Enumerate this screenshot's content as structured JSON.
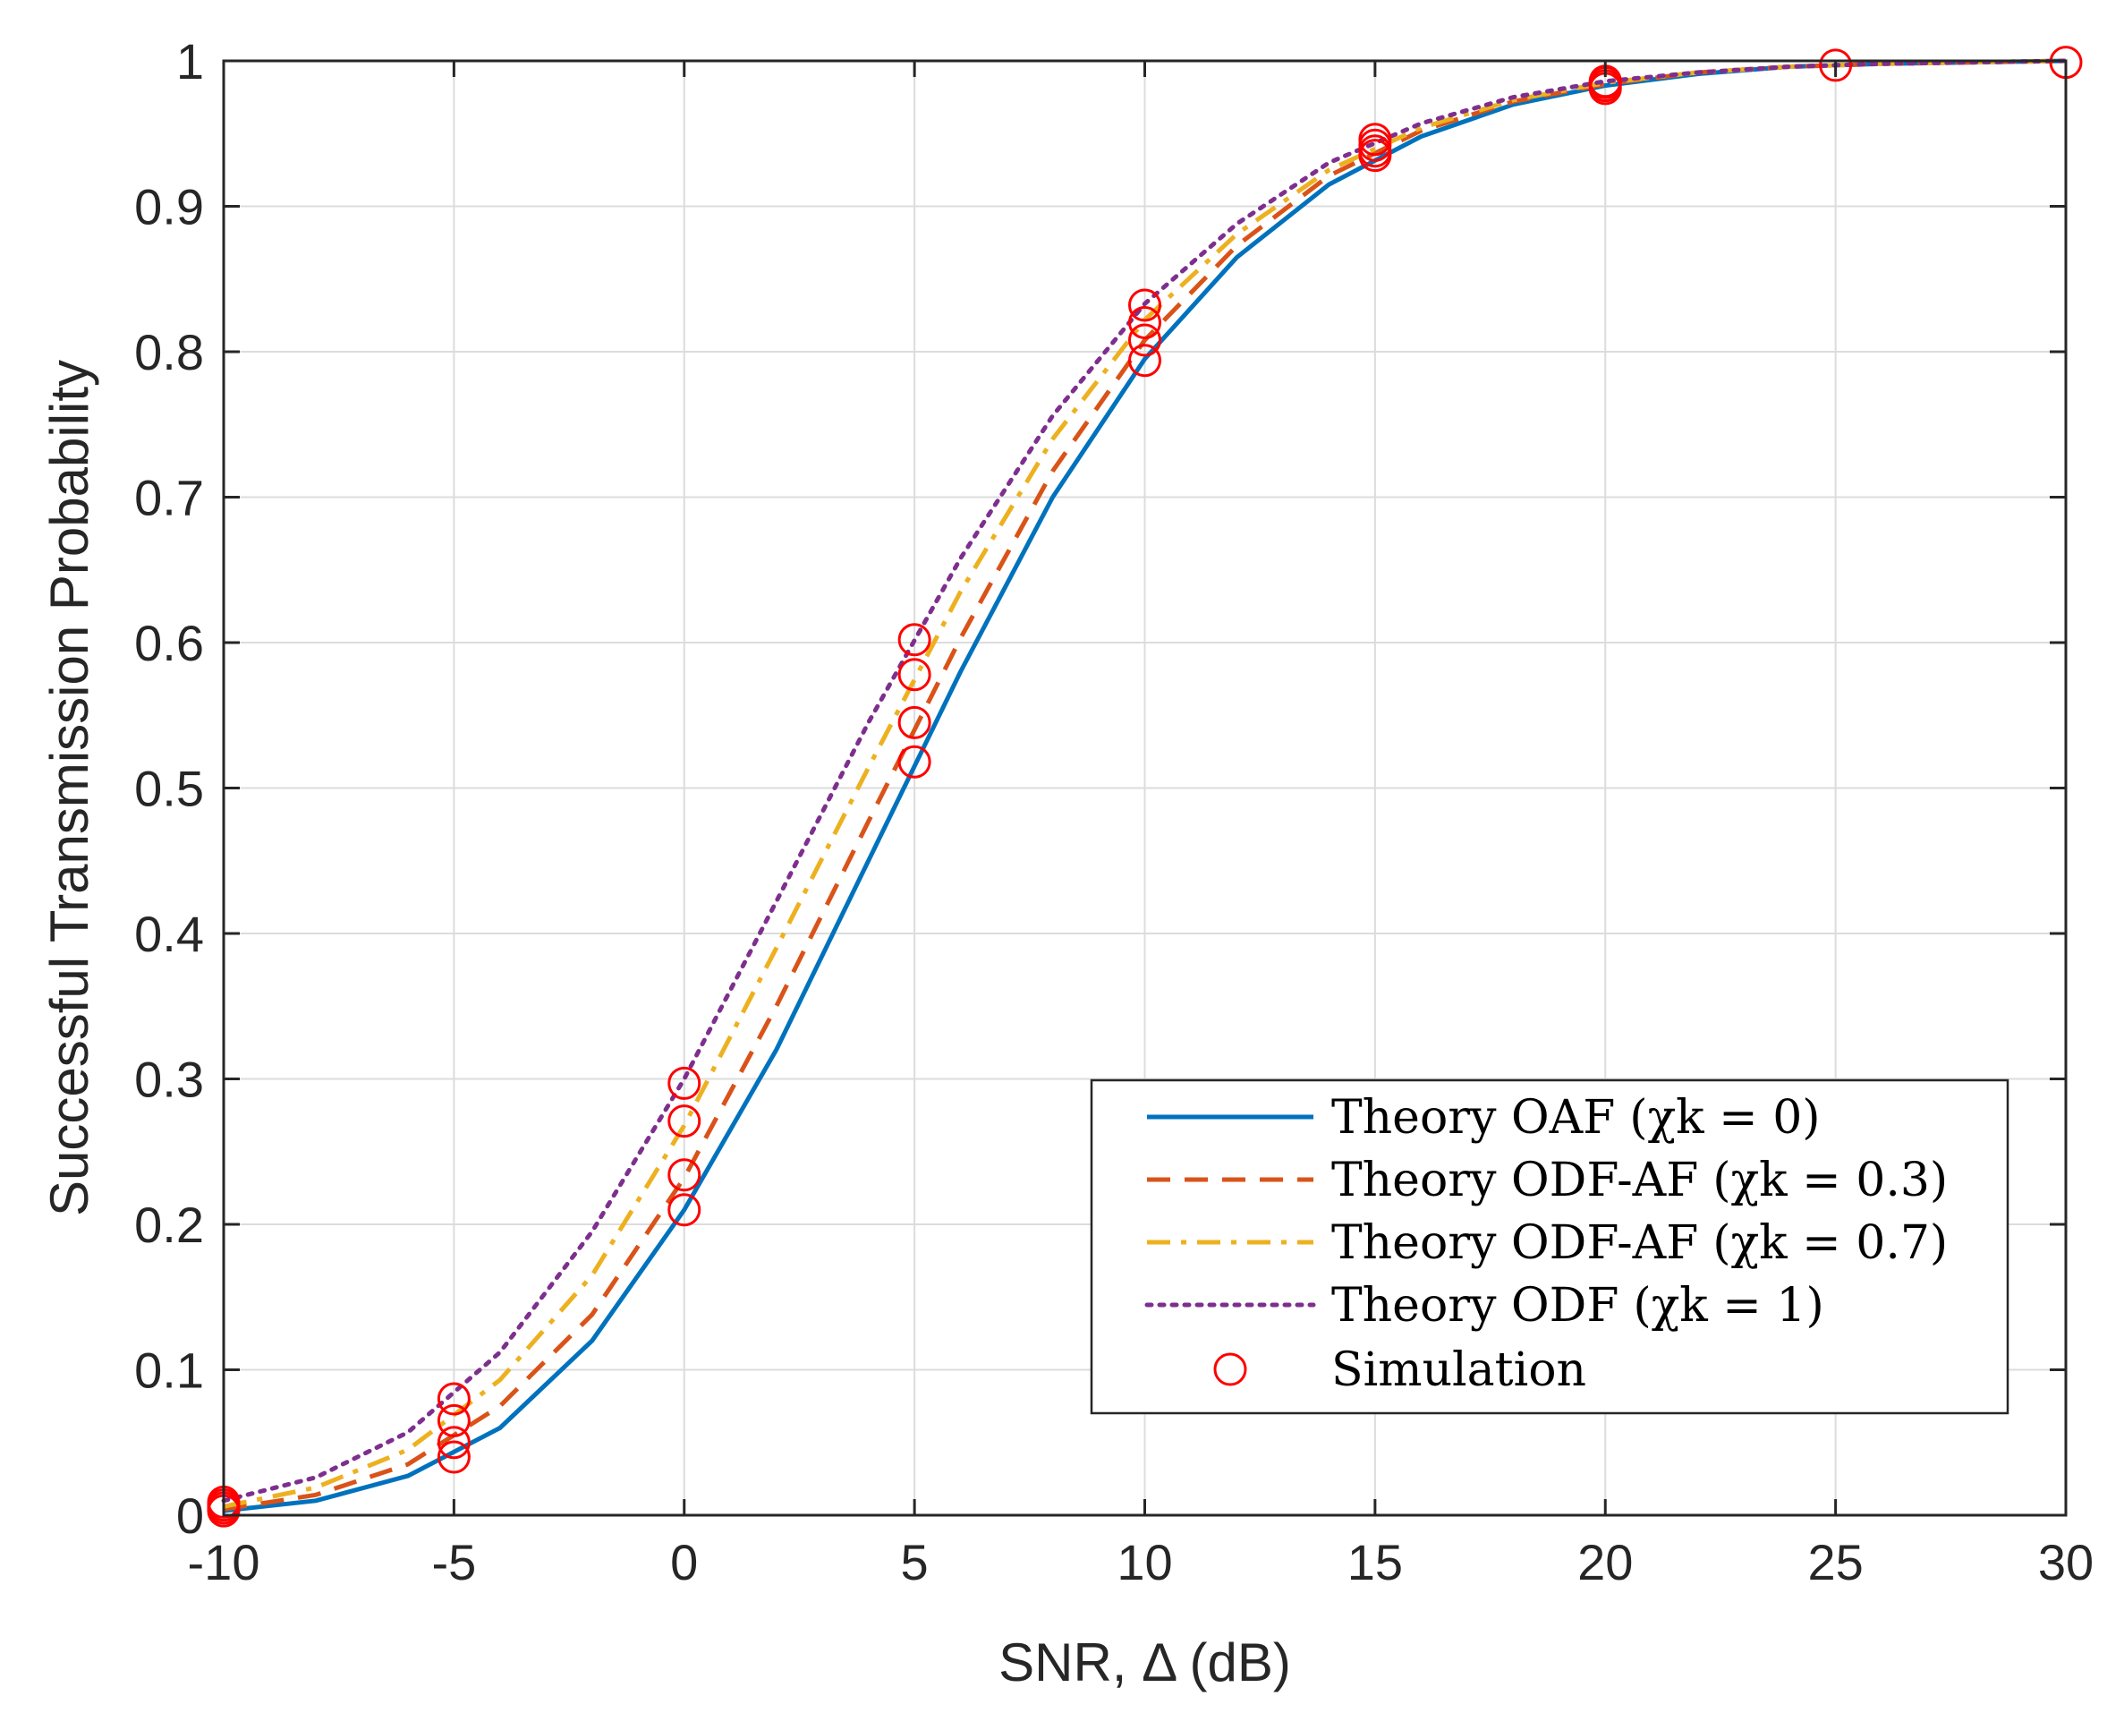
{
  "chart_data": {
    "type": "line",
    "title": "",
    "xlabel": "SNR, Δ (dB)",
    "ylabel": "Successful Transmission Probability",
    "xlim": [
      -10,
      30
    ],
    "ylim": [
      0,
      1
    ],
    "xticks": [
      -10,
      -5,
      0,
      5,
      10,
      15,
      20,
      25,
      30
    ],
    "xtick_labels": [
      "-10",
      "-5",
      "0",
      "5",
      "10",
      "15",
      "20",
      "25",
      "30"
    ],
    "yticks": [
      0,
      0.1,
      0.2,
      0.3,
      0.4,
      0.5,
      0.6,
      0.7,
      0.8,
      0.9,
      1
    ],
    "ytick_labels": [
      "0",
      "0.1",
      "0.2",
      "0.3",
      "0.4",
      "0.5",
      "0.6",
      "0.7",
      "0.8",
      "0.9",
      "1"
    ],
    "grid": true,
    "legend_position": "bottom-right",
    "x": [
      -10,
      -8,
      -6,
      -4,
      -2,
      0,
      2,
      4,
      6,
      8,
      10,
      12,
      14,
      16,
      18,
      20,
      22,
      24,
      26,
      28,
      30
    ],
    "series": [
      {
        "name": "Theory OAF",
        "param": "(χk = 0)",
        "color": "#0072BD",
        "style": "solid",
        "values": [
          0.003,
          0.01,
          0.027,
          0.06,
          0.12,
          0.21,
          0.32,
          0.45,
          0.58,
          0.7,
          0.795,
          0.865,
          0.915,
          0.948,
          0.97,
          0.983,
          0.991,
          0.996,
          0.998,
          0.999,
          1.0
        ]
      },
      {
        "name": "Theory ODF-AF",
        "param": "(χk = 0.3)",
        "color": "#D95319",
        "style": "dashed",
        "values": [
          0.004,
          0.014,
          0.035,
          0.075,
          0.138,
          0.232,
          0.35,
          0.477,
          0.603,
          0.718,
          0.808,
          0.873,
          0.921,
          0.952,
          0.972,
          0.984,
          0.992,
          0.996,
          0.998,
          0.999,
          1.0
        ]
      },
      {
        "name": "Theory ODF-AF",
        "param": "(χk = 0.7)",
        "color": "#EDB120",
        "style": "dashdot",
        "values": [
          0.006,
          0.019,
          0.045,
          0.093,
          0.165,
          0.268,
          0.39,
          0.514,
          0.635,
          0.74,
          0.822,
          0.881,
          0.925,
          0.954,
          0.973,
          0.985,
          0.992,
          0.996,
          0.998,
          0.999,
          1.0
        ]
      },
      {
        "name": "Theory ODF",
        "param": "(χk = 1)",
        "color": "#7E2F8E",
        "style": "dotted",
        "values": [
          0.01,
          0.026,
          0.057,
          0.112,
          0.195,
          0.3,
          0.422,
          0.545,
          0.658,
          0.756,
          0.833,
          0.888,
          0.93,
          0.957,
          0.975,
          0.986,
          0.992,
          0.996,
          0.998,
          0.999,
          1.0
        ]
      },
      {
        "name": "Simulation",
        "param": "",
        "color": "#FF0000",
        "style": "markers",
        "points": [
          [
            -10,
            0.003
          ],
          [
            -10,
            0.005
          ],
          [
            -10,
            0.007
          ],
          [
            -10,
            0.009
          ],
          [
            -5,
            0.04
          ],
          [
            -5,
            0.05
          ],
          [
            -5,
            0.065
          ],
          [
            -5,
            0.08
          ],
          [
            0,
            0.21
          ],
          [
            0,
            0.234
          ],
          [
            0,
            0.271
          ],
          [
            0,
            0.297
          ],
          [
            5,
            0.518
          ],
          [
            5,
            0.545
          ],
          [
            5,
            0.578
          ],
          [
            5,
            0.602
          ],
          [
            10,
            0.794
          ],
          [
            10,
            0.808
          ],
          [
            10,
            0.82
          ],
          [
            10,
            0.832
          ],
          [
            15,
            0.935
          ],
          [
            15,
            0.938
          ],
          [
            15,
            0.942
          ],
          [
            15,
            0.946
          ],
          [
            20,
            0.981
          ],
          [
            20,
            0.983
          ],
          [
            20,
            0.985
          ],
          [
            20,
            0.986
          ],
          [
            25,
            0.997
          ],
          [
            30,
            0.999
          ]
        ]
      }
    ]
  }
}
